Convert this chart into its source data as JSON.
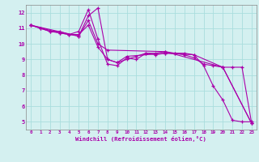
{
  "background_color": "#d4f0f0",
  "grid_color": "#aadddd",
  "line_color": "#aa00aa",
  "marker": "+",
  "xlim": [
    -0.5,
    23.5
  ],
  "ylim": [
    4.5,
    12.5
  ],
  "xticks": [
    0,
    1,
    2,
    3,
    4,
    5,
    6,
    7,
    8,
    9,
    10,
    11,
    12,
    13,
    14,
    15,
    16,
    17,
    18,
    19,
    20,
    21,
    22,
    23
  ],
  "yticks": [
    5,
    6,
    7,
    8,
    9,
    10,
    11,
    12
  ],
  "xlabel": "Windchill (Refroidissement éolien,°C)",
  "lines": [
    {
      "x": [
        0,
        1,
        2,
        3,
        4,
        5,
        6,
        7,
        8,
        9,
        10,
        11,
        12,
        13,
        14,
        15,
        16,
        17,
        18,
        19,
        20,
        21,
        22,
        23
      ],
      "y": [
        11.2,
        11.0,
        10.8,
        10.8,
        10.6,
        10.8,
        12.2,
        10.3,
        8.7,
        8.6,
        9.1,
        9.0,
        9.4,
        9.4,
        9.5,
        9.4,
        9.4,
        9.3,
        8.6,
        7.3,
        6.4,
        5.1,
        5.0,
        5.0
      ]
    },
    {
      "x": [
        0,
        1,
        2,
        3,
        4,
        5,
        6,
        7,
        8,
        9,
        10,
        11,
        12,
        13,
        14,
        15,
        16,
        17,
        18,
        19,
        20,
        21,
        22,
        23
      ],
      "y": [
        11.2,
        11.0,
        10.8,
        10.7,
        10.6,
        10.6,
        11.2,
        9.8,
        9.0,
        8.8,
        9.0,
        9.2,
        9.4,
        9.3,
        9.4,
        9.4,
        9.3,
        9.1,
        8.7,
        8.6,
        8.5,
        8.5,
        8.5,
        4.9
      ]
    },
    {
      "x": [
        0,
        3,
        5,
        6,
        7,
        8,
        9,
        10,
        14,
        17,
        20,
        23
      ],
      "y": [
        11.2,
        10.7,
        10.5,
        11.8,
        12.3,
        9.0,
        8.8,
        9.2,
        9.4,
        9.3,
        8.5,
        4.9
      ]
    },
    {
      "x": [
        0,
        5,
        6,
        7,
        8,
        14,
        20,
        23
      ],
      "y": [
        11.2,
        10.5,
        11.5,
        10.0,
        9.6,
        9.5,
        8.5,
        4.9
      ]
    }
  ]
}
